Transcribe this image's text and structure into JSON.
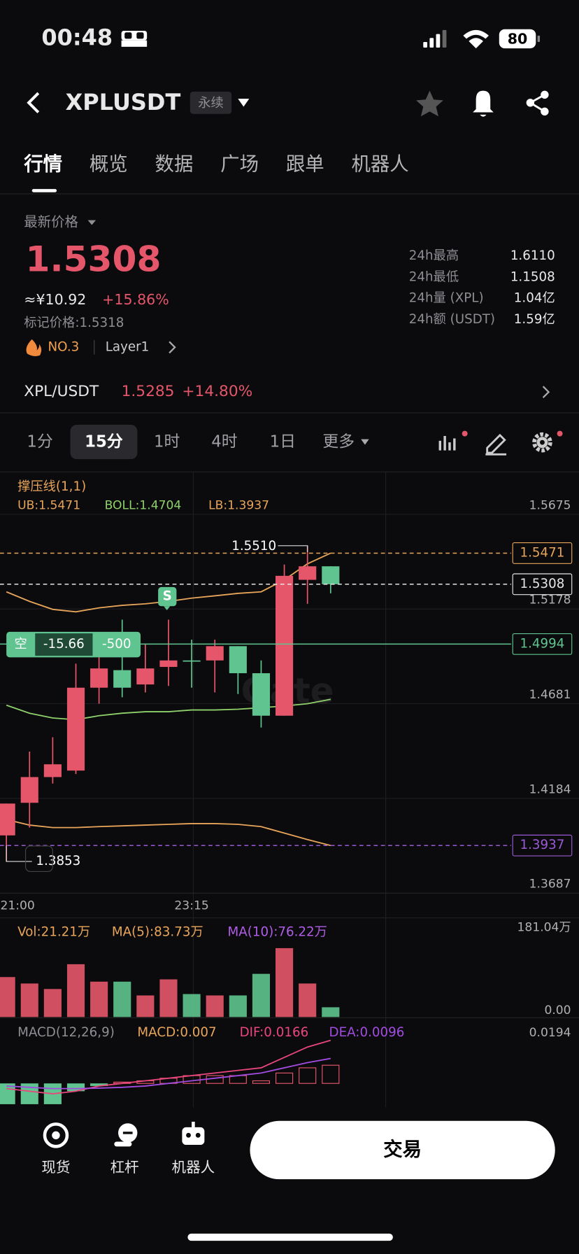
{
  "status_bar": {
    "time": "00:48",
    "battery": "80"
  },
  "header": {
    "symbol": "XPLUSDT",
    "tag": "永续"
  },
  "tabs": [
    "行情",
    "概览",
    "数据",
    "广场",
    "跟单",
    "机器人"
  ],
  "price": {
    "label": "最新价格",
    "last": "1.5308",
    "cny": "≈¥10.92",
    "change": "+15.86%",
    "mark": "标记价格:1.5318",
    "rank": "NO.3",
    "sector": "Layer1"
  },
  "stats": [
    {
      "label": "24h最高",
      "value": "1.6110"
    },
    {
      "label": "24h最低",
      "value": "1.1508"
    },
    {
      "label": "24h量 (XPL)",
      "value": "1.04亿"
    },
    {
      "label": "24h额 (USDT)",
      "value": "1.59亿"
    }
  ],
  "spot": {
    "pair": "XPL/USDT",
    "price": "1.5285",
    "change": "+14.80%"
  },
  "intervals": [
    "1分",
    "15分",
    "1时",
    "4时",
    "1日",
    "更多"
  ],
  "chart": {
    "indicator": "撑压线(1,1)",
    "ub_label": "UB:1.5471",
    "boll_label": "BOLL:1.4704",
    "lb_label": "LB:1.3937",
    "watermark": "Gate",
    "up_color": "#e5566a",
    "down_color": "#5fc48f",
    "ylim": [
      1.3687,
      1.5897
    ],
    "yticks": [
      1.5675,
      1.5178,
      1.4681,
      1.4184,
      1.3687
    ],
    "times": [
      "21:00",
      null,
      null,
      null,
      null,
      null,
      null,
      null,
      "23:15",
      null,
      null,
      null,
      null,
      null,
      null
    ],
    "candles": {
      "open": [
        1.399,
        1.4161,
        1.4296,
        1.433,
        1.4765,
        1.4857,
        1.4782,
        1.4874,
        1.4908,
        1.4908,
        1.4983,
        1.4841,
        1.4618,
        1.5331,
        1.5402
      ],
      "high": [
        1.4157,
        1.443,
        1.4505,
        1.4891,
        1.5017,
        1.5122,
        1.4996,
        1.5122,
        1.5017,
        1.5017,
        1.4983,
        1.4908,
        1.5411,
        1.551,
        1.5402
      ],
      "low": [
        1.3853,
        1.4031,
        1.4262,
        1.4312,
        1.4681,
        1.4715,
        1.474,
        1.4774,
        1.4765,
        1.474,
        1.4732,
        1.4556,
        1.4618,
        1.5205,
        1.526
      ],
      "close": [
        1.4157,
        1.4296,
        1.4363,
        1.4765,
        1.4866,
        1.4765,
        1.4866,
        1.4908,
        1.4904,
        1.4983,
        1.4841,
        1.4618,
        1.5352,
        1.5402,
        1.5308
      ]
    },
    "high_marker": {
      "value": 1.551,
      "label": "1.5510"
    },
    "low_marker": {
      "value": 1.3853,
      "label": "1.3853"
    },
    "boll": {
      "upper": [
        1.5268,
        1.5218,
        1.5176,
        1.5163,
        1.5184,
        1.5197,
        1.5205,
        1.5218,
        1.5235,
        1.5247,
        1.526,
        1.5268,
        1.5331,
        1.5415,
        1.5471
      ],
      "mid": [
        1.4673,
        1.4631,
        1.4606,
        1.4597,
        1.4618,
        1.4631,
        1.4639,
        1.4639,
        1.4648,
        1.4648,
        1.4652,
        1.466,
        1.4669,
        1.4681,
        1.4704
      ],
      "lower": [
        1.4073,
        1.4044,
        1.4031,
        1.4031,
        1.4036,
        1.404,
        1.4044,
        1.4048,
        1.4052,
        1.4052,
        1.4048,
        1.4036,
        1.4002,
        1.3968,
        1.3937
      ],
      "upper_color": "#e8a55a",
      "mid_color": "#8fd16a",
      "lower_color": "#e8a55a"
    },
    "price_lines": [
      {
        "value": 1.5471,
        "color": "#e8a55a",
        "style": "dashed"
      },
      {
        "value": 1.5308,
        "color": "#e6e6e6",
        "style": "dashed"
      },
      {
        "value": 1.4994,
        "color": "#5fc48f",
        "style": "solid"
      },
      {
        "value": 1.3937,
        "color": "#9b59d6",
        "style": "dashed"
      }
    ],
    "position": {
      "side": "空",
      "pnl": "-15.66",
      "size": "-500"
    },
    "signal": "S",
    "volume": {
      "vol_label": "Vol:21.21万",
      "ma5_label": "MA(5):83.73万",
      "ma10_label": "MA(10):76.22万",
      "values": [
        87,
        73,
        61,
        115,
        77,
        77,
        47,
        82,
        50,
        47,
        47,
        94,
        150,
        73,
        21.21
      ],
      "ylim": [
        0,
        181.04
      ],
      "yticks": [
        {
          "value": 181.04,
          "label": "181.04万"
        },
        {
          "value": 0,
          "label": "0.00"
        }
      ]
    },
    "macd": {
      "title": "MACD(12,26,9)",
      "macd_label": "MACD:0.007",
      "dif_label": "DIF:0.0166",
      "dea_label": "DEA:0.0096",
      "hist": [
        -0.008,
        -0.008,
        -0.008,
        -0.003,
        -0.001,
        0.0005,
        0.001,
        0.002,
        0.003,
        0.003,
        0.003,
        0.001,
        0.004,
        0.006,
        0.007
      ],
      "dif": [
        -0.002,
        -0.003,
        -0.004,
        -0.003,
        -0.001,
        0.0,
        0.001,
        0.002,
        0.003,
        0.004,
        0.005,
        0.006,
        0.01,
        0.014,
        0.0166
      ],
      "dea": [
        -0.001,
        -0.0015,
        -0.002,
        -0.002,
        -0.0018,
        -0.0015,
        -0.001,
        0.0,
        0.001,
        0.002,
        0.003,
        0.004,
        0.006,
        0.008,
        0.0096
      ],
      "dif_color": "#e8467c",
      "dea_color": "#a24be0",
      "ylim": [
        -0.0092,
        0.0194
      ],
      "yticks": [
        0.0194
      ]
    }
  },
  "bottom_nav": [
    "现货",
    "杠杆",
    "机器人"
  ],
  "trade_button": "交易"
}
